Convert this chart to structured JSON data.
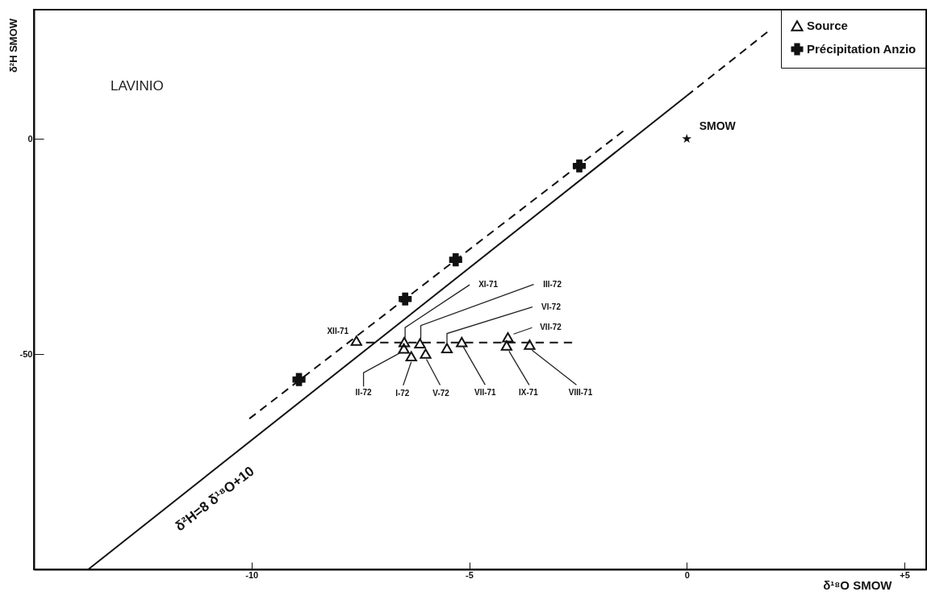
{
  "chart_data": {
    "type": "scatter",
    "xlabel": "δ¹⁸O SMOW",
    "ylabel": "δ²H SMOW",
    "xlim": [
      -15,
      5.5
    ],
    "ylim": [
      -100,
      30
    ],
    "xticks": [
      -10,
      -5,
      0,
      {
        "value": 5,
        "label": "+5"
      }
    ],
    "yticks": [
      -50,
      0
    ],
    "legend": "top right",
    "series": [
      {
        "name": "Source",
        "marker": "triangle",
        "color": "#111111",
        "x": [
          -7.59,
          -6.49,
          -6.5,
          -6.33,
          -6.13,
          -6.0,
          -5.51,
          -5.17,
          -4.11,
          -4.14,
          -3.61
        ],
        "values": [
          -46.9,
          -47.2,
          -48.7,
          -50.5,
          -47.5,
          -49.9,
          -48.6,
          -47.2,
          -46.1,
          -48.0,
          -47.8
        ]
      },
      {
        "name": "Précipitation Anzio",
        "marker": "cross",
        "color": "#111111",
        "x": [
          -8.91,
          -6.47,
          -5.31,
          -2.47
        ],
        "values": [
          -55.9,
          -37.2,
          -28.1,
          -6.3
        ]
      },
      {
        "marker": "star",
        "color": "#111111",
        "x": [
          0
        ],
        "values": [
          0
        ]
      },
      {
        "type": "line",
        "line_style": "solid",
        "color": "#111111",
        "x": [
          -13.75,
          0
        ],
        "values": [
          -100,
          10
        ]
      },
      {
        "type": "line",
        "line_style": "dashed",
        "color": "#111111",
        "x": [
          0,
          1.85
        ],
        "values": [
          10,
          24.8
        ]
      },
      {
        "type": "line",
        "line_style": "dashed",
        "color": "#111111",
        "x": [
          -10.05,
          -1.46
        ],
        "values": [
          -65.0,
          1.8
        ]
      },
      {
        "type": "line",
        "line_style": "dashed",
        "color": "#111111",
        "x": [
          -7.37,
          -2.63
        ],
        "values": [
          -47.3,
          -47.3
        ]
      }
    ],
    "annotations": [
      "LAVINIO",
      {
        "text": "SMOW",
        "x": 0,
        "y": 0
      },
      {
        "text": "δ²H=8 δ¹⁸O+10",
        "x": -11.1,
        "y": -78.8
      },
      {
        "text": "XII-71",
        "x": -7.59,
        "y": -46.9
      },
      {
        "text": "XI-71",
        "x": -6.49,
        "y": -47.2
      },
      {
        "text": "II-72",
        "x": -6.5,
        "y": -48.7
      },
      {
        "text": "I-72",
        "x": -6.33,
        "y": -50.5
      },
      {
        "text": "III-72",
        "x": -6.13,
        "y": -47.5
      },
      {
        "text": "V-72",
        "x": -6.0,
        "y": -49.9
      },
      {
        "text": "VI-72",
        "x": -5.51,
        "y": -48.6
      },
      {
        "text": "VII-71",
        "x": -5.17,
        "y": -47.2
      },
      {
        "text": "VII-72",
        "x": -4.11,
        "y": -46.1
      },
      {
        "text": "IX-71",
        "x": -4.14,
        "y": -48.0
      },
      {
        "text": "VIII-71",
        "x": -3.61,
        "y": -47.8
      }
    ]
  }
}
